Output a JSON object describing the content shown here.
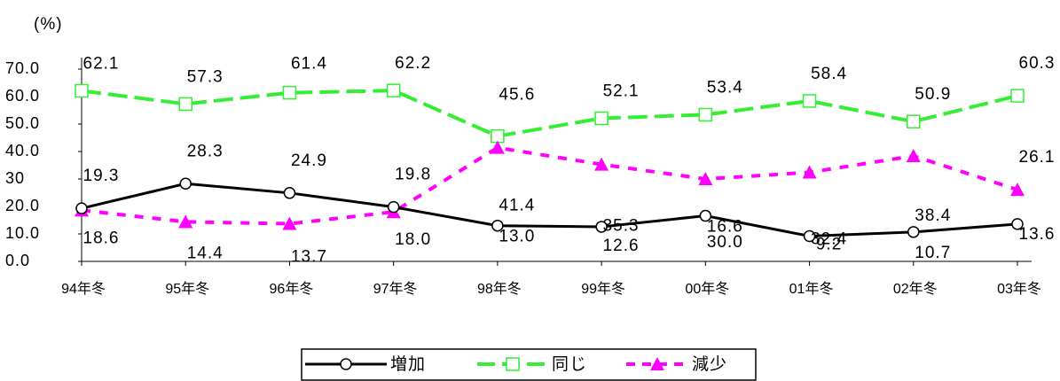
{
  "chart_data": {
    "type": "line",
    "y_label": "(%)",
    "categories": [
      "94年冬",
      "95年冬",
      "96年冬",
      "97年冬",
      "98年冬",
      "99年冬",
      "00年冬",
      "01年冬",
      "02年冬",
      "03年冬"
    ],
    "ylim": [
      0,
      70
    ],
    "yticks": [
      {
        "value": 0,
        "label": "0.0"
      },
      {
        "value": 10,
        "label": "10.0"
      },
      {
        "value": 20,
        "label": "20.0"
      },
      30,
      {
        "value": 40,
        "label": "40.0"
      },
      {
        "value": 50,
        "label": "50.0"
      },
      {
        "value": 60,
        "label": "60.0"
      },
      {
        "value": 70,
        "label": "70.0"
      }
    ],
    "series": [
      {
        "name": "増加",
        "color": "#000000",
        "marker": "circle",
        "values": [
          19.3,
          28.3,
          24.9,
          19.8,
          13,
          12.6,
          16.6,
          9.2,
          10.7,
          13.6
        ],
        "value_labels": [
          "19.3",
          "28.3",
          "24.9",
          "19.8",
          "13.0",
          "12.6",
          "16.6",
          "9.2",
          "10.7",
          "13.6"
        ]
      },
      {
        "name": "同じ",
        "color": "#33ee33",
        "marker": "square",
        "values": [
          62.1,
          57.3,
          61.4,
          62.2,
          45.6,
          52.1,
          53.4,
          58.4,
          50.9,
          60.3
        ],
        "value_labels": [
          "62.1",
          "57.3",
          "61.4",
          "62.2",
          "45.6",
          "52.1",
          "53.4",
          "58.4",
          "50.9",
          "60.3"
        ]
      },
      {
        "name": "減少",
        "color": "#ff00ff",
        "marker": "triangle",
        "values": [
          18.6,
          14.4,
          13.7,
          18,
          41.4,
          35.3,
          30,
          32.4,
          38.4,
          26.1
        ],
        "value_labels": [
          "18.6",
          "14.4",
          "13.7",
          "18.0",
          "41.4",
          "35.3",
          "30.0",
          "32.4",
          "38.4",
          "26.1"
        ]
      }
    ]
  }
}
